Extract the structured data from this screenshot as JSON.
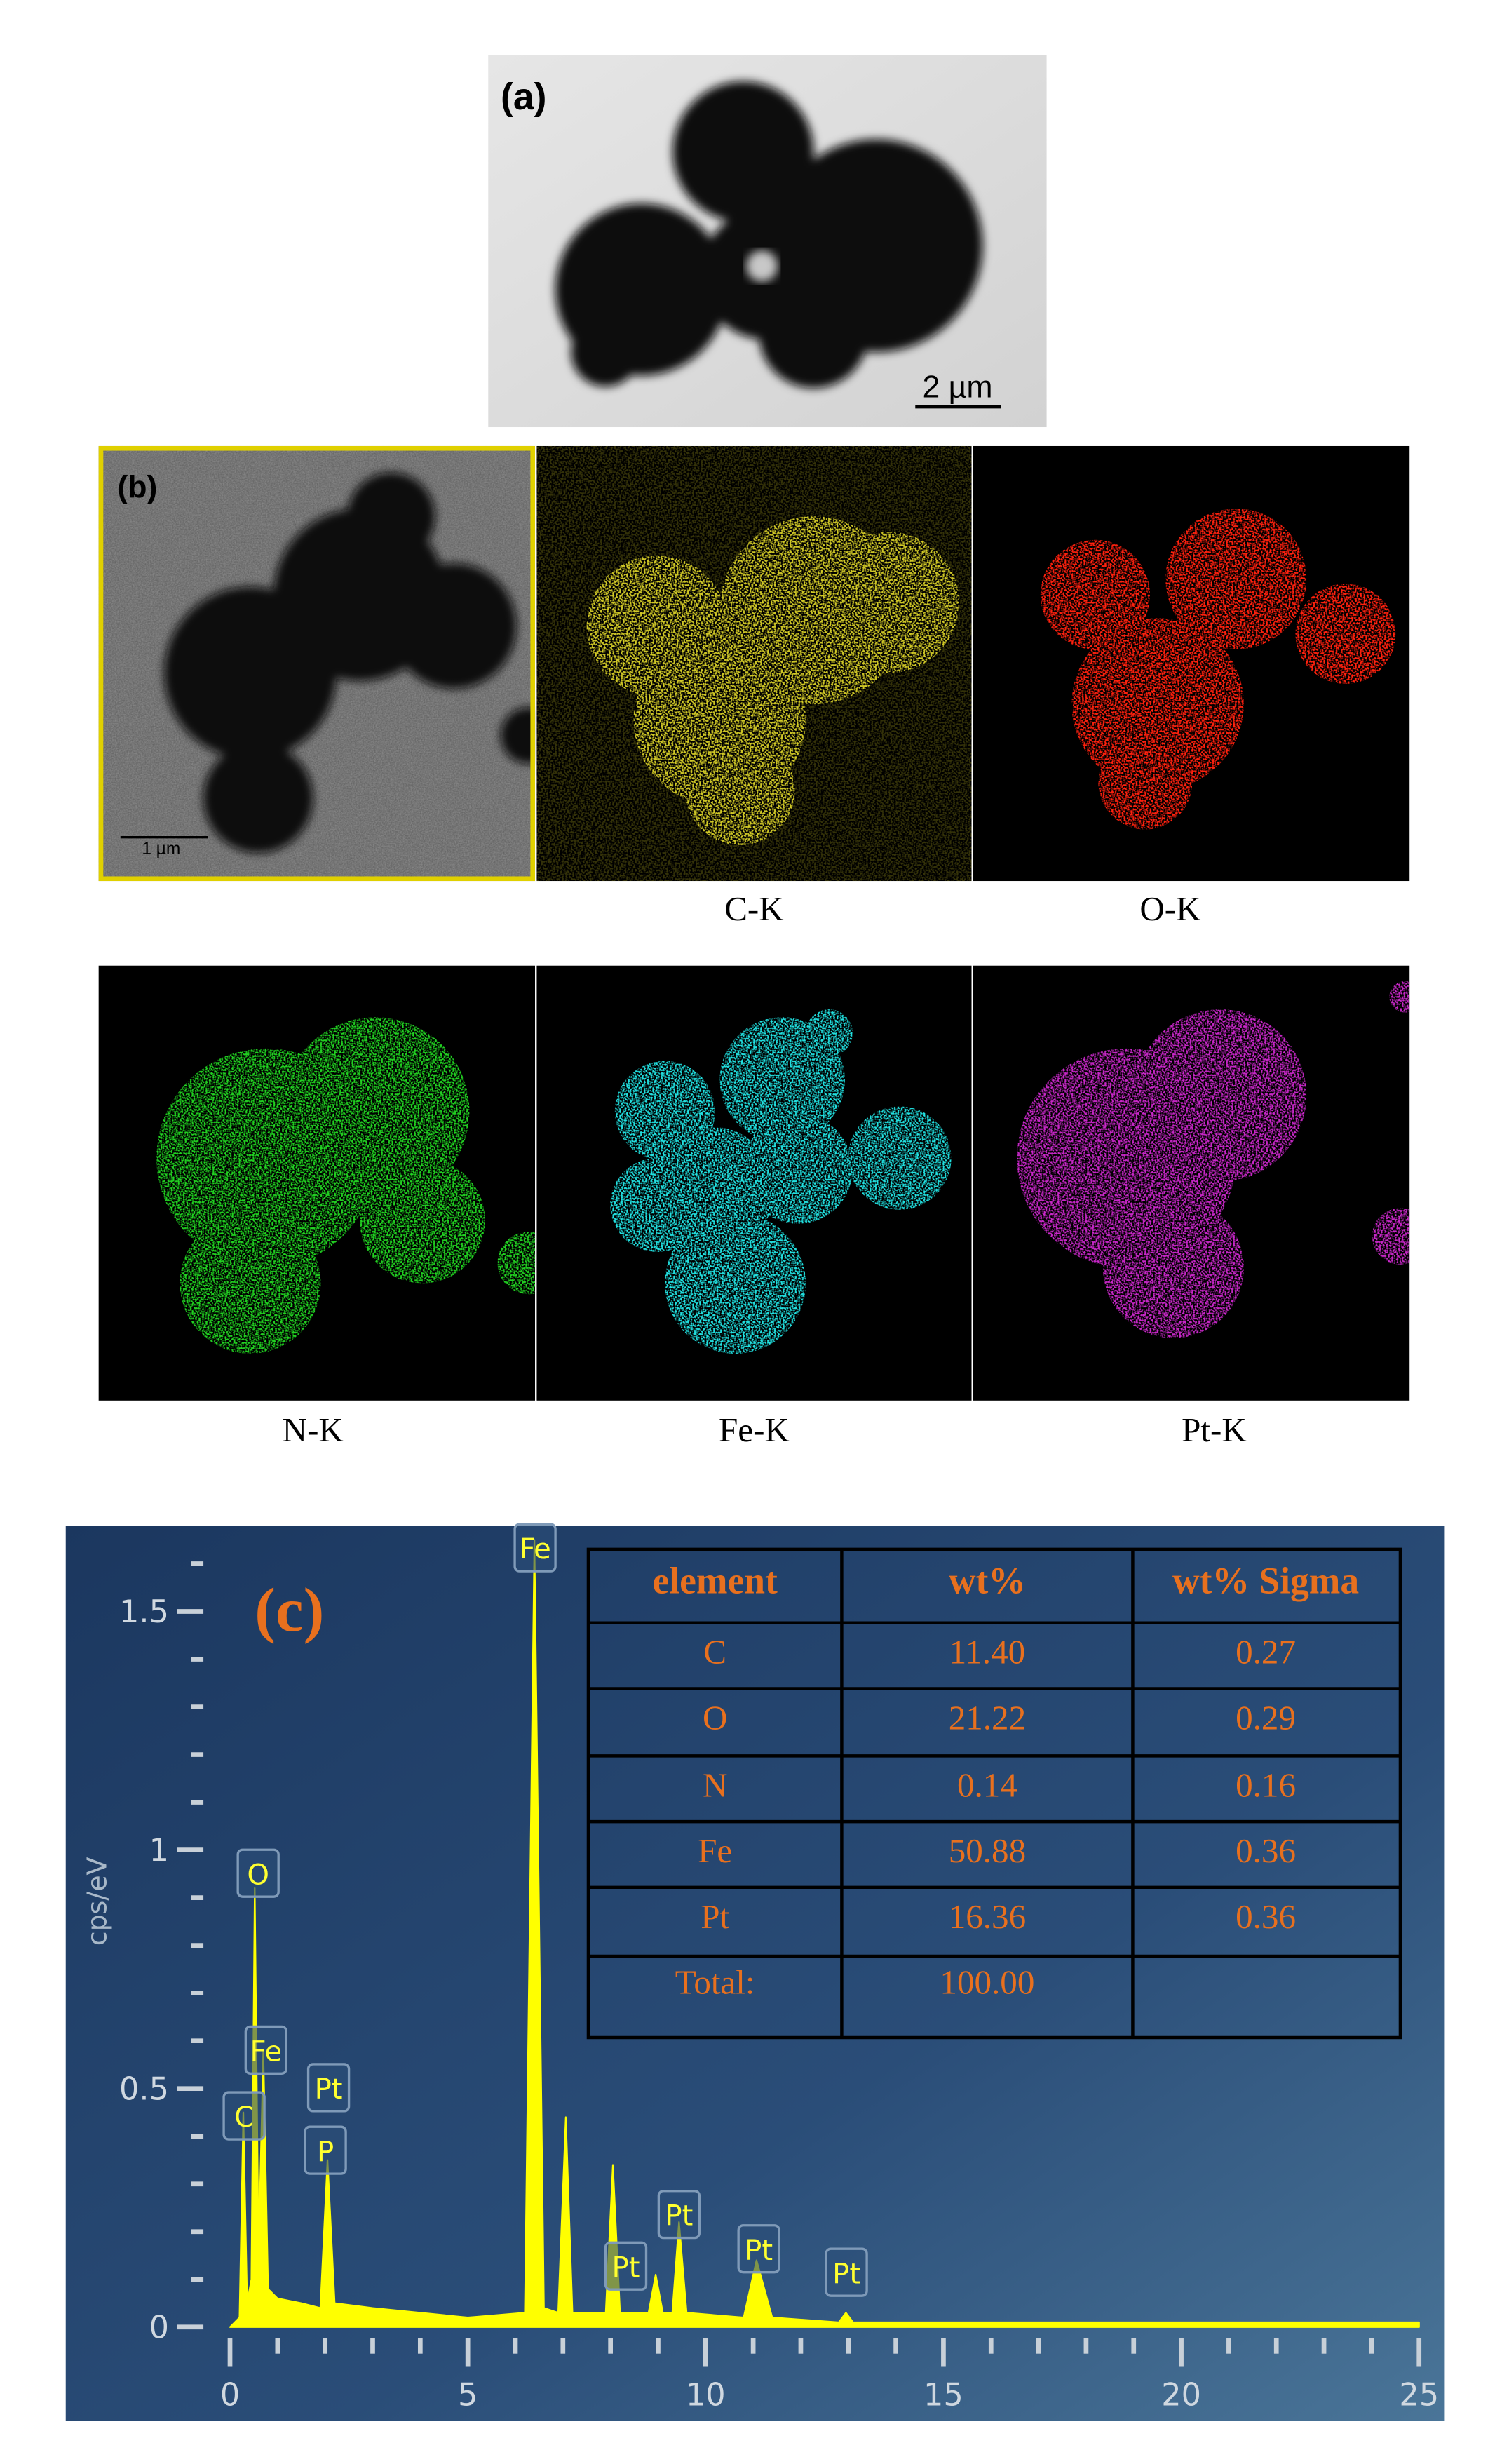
{
  "panel_a": {
    "label": "(a)",
    "scale_bar": "2 µm"
  },
  "panel_b": {
    "label": "(b)",
    "scale_bar": "1 µm",
    "maps": [
      "C-K",
      "O-K",
      "N-K",
      "Fe-K",
      "Pt-K"
    ]
  },
  "chart_data": {
    "type": "area",
    "label": "(c)",
    "y_axis_label": "cps/eV",
    "x": [
      0,
      0.2,
      0.28,
      0.36,
      0.45,
      0.52,
      0.6,
      0.7,
      0.8,
      1.0,
      1.5,
      1.9,
      2.05,
      2.2,
      3,
      4,
      5,
      6.2,
      6.4,
      6.6,
      6.9,
      7.06,
      7.2,
      7.9,
      8.05,
      8.2,
      8.8,
      8.95,
      9.1,
      9.3,
      9.44,
      9.6,
      10.8,
      11.07,
      11.4,
      12.8,
      12.95,
      13.1,
      15,
      20,
      25
    ],
    "series": [
      {
        "color": "#ffff00",
        "values": [
          0,
          0.02,
          0.45,
          0.05,
          0.1,
          0.92,
          0.15,
          0.58,
          0.08,
          0.06,
          0.05,
          0.04,
          0.35,
          0.05,
          0.04,
          0.03,
          0.02,
          0.03,
          1.65,
          0.04,
          0.03,
          0.44,
          0.03,
          0.03,
          0.34,
          0.03,
          0.03,
          0.11,
          0.03,
          0.03,
          0.22,
          0.03,
          0.02,
          0.14,
          0.02,
          0.01,
          0.03,
          0.01,
          0.01,
          0.01,
          0.01
        ]
      }
    ],
    "xlim": [
      0,
      25
    ],
    "ylim": [
      0,
      1.65
    ],
    "xticks": [
      0,
      5,
      10,
      15,
      20,
      25
    ],
    "yticks": [
      0,
      0.5,
      1,
      1.5
    ],
    "annotations": [
      "Fe",
      "O",
      "Fe",
      "C",
      "Pt",
      "P",
      "Pt",
      "Pt",
      "Pt",
      "Pt"
    ]
  },
  "table": {
    "header": [
      "element",
      "wt%",
      "wt% Sigma"
    ],
    "rows": [
      [
        "C",
        "11.40",
        "0.27"
      ],
      [
        "O",
        "21.22",
        "0.29"
      ],
      [
        "N",
        "0.14",
        "0.16"
      ],
      [
        "Fe",
        "50.88",
        "0.36"
      ],
      [
        "Pt",
        "16.36",
        "0.36"
      ],
      [
        "Total:",
        "100.00"
      ]
    ]
  }
}
